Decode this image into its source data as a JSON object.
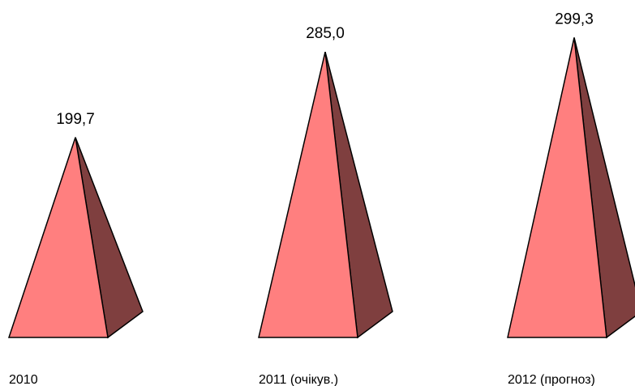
{
  "chart_data": {
    "type": "bar",
    "shape": "pyramid-3d",
    "categories": [
      "2010",
      "2011 (очікув.)",
      "2012 (прогноз)"
    ],
    "values": [
      199.7,
      285.0,
      299.3
    ],
    "value_labels": [
      "199,7",
      "285,0",
      "299,3"
    ],
    "title": "",
    "xlabel": "",
    "ylabel": "",
    "ylim": [
      0,
      320
    ],
    "grid": false,
    "legend": "none",
    "colors": {
      "front": "#ff7f7f",
      "side": "#7f3f3f",
      "outline": "#000000"
    }
  }
}
